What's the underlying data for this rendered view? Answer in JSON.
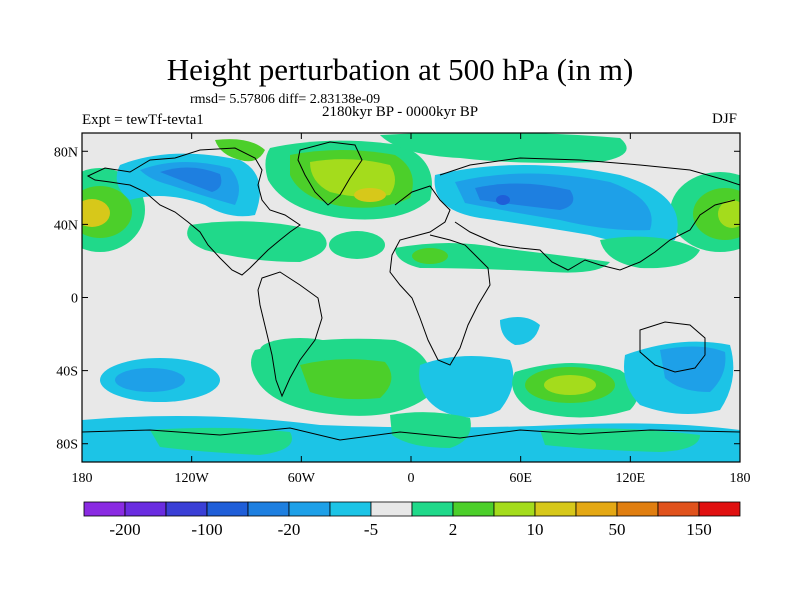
{
  "header": {
    "title": "Height perturbation at 500 hPa (in m)",
    "stats": "rmsd= 5.57806 diff= 2.83138e-09",
    "period": "2180kyr BP - 0000kyr BP",
    "experiment": "Expt = tewTf-tevta1",
    "season": "DJF"
  },
  "axes": {
    "lat_labels": [
      "80N",
      "40N",
      "0",
      "40S",
      "80S"
    ],
    "lon_labels": [
      "180",
      "120W",
      "60W",
      "0",
      "60E",
      "120E",
      "180"
    ],
    "lat_range": [
      -90,
      90
    ],
    "lon_range": [
      -180,
      180
    ]
  },
  "colorbar": {
    "labels": [
      "-200",
      "-100",
      "-20",
      "-5",
      "2",
      "10",
      "50",
      "150"
    ],
    "colors": [
      "#8a2be2",
      "#6a2ce0",
      "#3a3fd6",
      "#1f5ed8",
      "#1e7fe0",
      "#1ea0e8",
      "#1cc4e6",
      "#e8e8e8",
      "#20d98a",
      "#4ccf2a",
      "#a4dc1c",
      "#d7c81a",
      "#e4a814",
      "#e07e10",
      "#e0521c",
      "#e01010"
    ]
  },
  "map": {
    "background_color": "#e8e8e8",
    "anomalies": [
      {
        "region": "Aleutian trough",
        "lon": -150,
        "lat": 38,
        "level": "positive"
      },
      {
        "region": "North America",
        "lon": -110,
        "lat": 55,
        "level": "negative"
      },
      {
        "region": "North Atlantic",
        "lon": -40,
        "lat": 60,
        "level": "positive"
      },
      {
        "region": "Eurasia",
        "lon": 70,
        "lat": 45,
        "level": "negative"
      },
      {
        "region": "Southern Indian Ocean",
        "lon": 85,
        "lat": -48,
        "level": "positive"
      },
      {
        "region": "South Pacific",
        "lon": -150,
        "lat": -45,
        "level": "negative"
      },
      {
        "region": "Australia",
        "lon": 150,
        "lat": -35,
        "level": "negative"
      },
      {
        "region": "South Atlantic",
        "lon": -25,
        "lat": -40,
        "level": "positive"
      }
    ]
  }
}
